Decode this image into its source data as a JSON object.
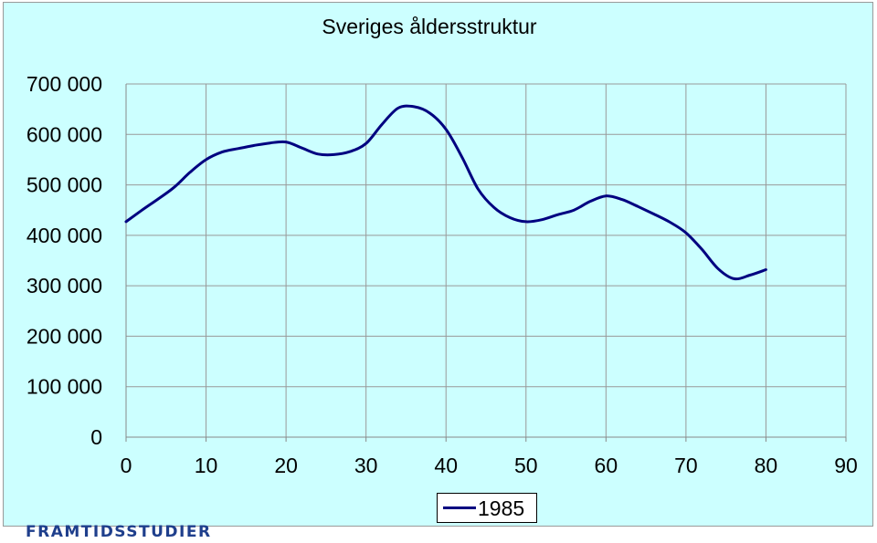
{
  "brand": "FRAMTIDSSTUDIER",
  "colors": {
    "background": "#ccffff",
    "line": "#000080",
    "grid": "#999999",
    "brand": "#1f3f8c"
  },
  "chart_data": {
    "type": "line",
    "title": "Sveriges åldersstruktur",
    "xlabel": "",
    "ylabel": "",
    "xlim": [
      0,
      90
    ],
    "ylim": [
      0,
      700000
    ],
    "x_ticks": [
      "0",
      "10",
      "20",
      "30",
      "40",
      "50",
      "60",
      "70",
      "80",
      "90"
    ],
    "y_ticks": [
      "0",
      "100 000",
      "200 000",
      "300 000",
      "400 000",
      "500 000",
      "600 000",
      "700 000"
    ],
    "grid": true,
    "legend_position": "bottom-center",
    "series": [
      {
        "name": "1985",
        "x": [
          0,
          2,
          4,
          6,
          8,
          10,
          12,
          14,
          16,
          18,
          20,
          22,
          24,
          26,
          28,
          30,
          32,
          34,
          36,
          38,
          40,
          42,
          44,
          46,
          48,
          50,
          52,
          54,
          56,
          58,
          60,
          62,
          64,
          66,
          68,
          70,
          72,
          74,
          76,
          78,
          80
        ],
        "y": [
          427000,
          450000,
          472000,
          495000,
          525000,
          550000,
          565000,
          572000,
          578000,
          583000,
          585000,
          573000,
          561000,
          560000,
          566000,
          582000,
          620000,
          652000,
          655000,
          642000,
          610000,
          555000,
          492000,
          455000,
          435000,
          427000,
          431000,
          441000,
          450000,
          467000,
          478000,
          471000,
          457000,
          442000,
          426000,
          405000,
          372000,
          334000,
          314000,
          321000,
          332000
        ]
      }
    ]
  }
}
